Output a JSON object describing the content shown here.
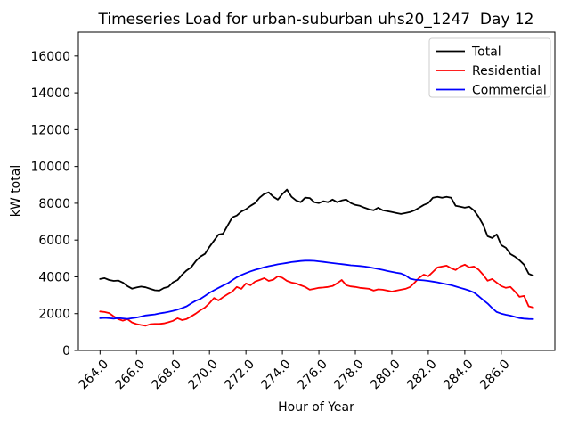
{
  "chart_data": {
    "type": "line",
    "title": "Timeseries Load for urban-suburban uhs20_1247  Day 12",
    "xlabel": "Hour of Year",
    "ylabel": "kW total",
    "x_start": 264.0,
    "x_step": 0.25,
    "xlim": [
      262.8125,
      288.9375
    ],
    "ylim": [
      0,
      17300
    ],
    "x_ticks": [
      264.0,
      266.0,
      268.0,
      270.0,
      272.0,
      274.0,
      276.0,
      278.0,
      280.0,
      282.0,
      284.0,
      286.0
    ],
    "y_ticks": [
      0,
      2000,
      4000,
      6000,
      8000,
      10000,
      12000,
      14000,
      16000
    ],
    "grid": false,
    "legend": {
      "position": "upper right",
      "entries": [
        "Total",
        "Residential",
        "Commercial"
      ]
    },
    "series": [
      {
        "name": "Total",
        "color": "#000000",
        "values": [
          3880,
          3930,
          3830,
          3780,
          3800,
          3690,
          3500,
          3360,
          3420,
          3470,
          3430,
          3350,
          3270,
          3250,
          3390,
          3460,
          3700,
          3830,
          4120,
          4350,
          4520,
          4850,
          5100,
          5250,
          5630,
          5970,
          6300,
          6350,
          6800,
          7230,
          7330,
          7550,
          7670,
          7860,
          8010,
          8300,
          8500,
          8590,
          8350,
          8200,
          8500,
          8740,
          8350,
          8150,
          8060,
          8300,
          8280,
          8060,
          8010,
          8110,
          8060,
          8200,
          8060,
          8150,
          8200,
          8010,
          7910,
          7860,
          7760,
          7670,
          7620,
          7760,
          7620,
          7570,
          7520,
          7470,
          7420,
          7470,
          7520,
          7620,
          7760,
          7910,
          8010,
          8300,
          8350,
          8300,
          8350,
          8300,
          7860,
          7810,
          7760,
          7810,
          7620,
          7280,
          6840,
          6210,
          6110,
          6310,
          5730,
          5580,
          5240,
          5100,
          4900,
          4660,
          4170,
          4060
        ]
      },
      {
        "name": "Residential",
        "color": "#ff0000",
        "values": [
          2120,
          2090,
          2030,
          1850,
          1700,
          1620,
          1700,
          1520,
          1430,
          1380,
          1340,
          1420,
          1440,
          1440,
          1470,
          1530,
          1610,
          1750,
          1650,
          1710,
          1850,
          2000,
          2180,
          2330,
          2570,
          2850,
          2720,
          2900,
          3060,
          3200,
          3450,
          3350,
          3640,
          3540,
          3740,
          3830,
          3930,
          3780,
          3850,
          4030,
          3950,
          3780,
          3690,
          3640,
          3540,
          3450,
          3300,
          3350,
          3400,
          3420,
          3450,
          3500,
          3650,
          3830,
          3540,
          3480,
          3450,
          3400,
          3380,
          3350,
          3250,
          3320,
          3300,
          3250,
          3200,
          3250,
          3300,
          3350,
          3450,
          3690,
          3950,
          4120,
          4030,
          4270,
          4510,
          4560,
          4610,
          4470,
          4370,
          4560,
          4660,
          4510,
          4560,
          4400,
          4120,
          3790,
          3880,
          3690,
          3500,
          3400,
          3450,
          3200,
          2910,
          2960,
          2400,
          2330
        ]
      },
      {
        "name": "Commercial",
        "color": "#0000ff",
        "values": [
          1750,
          1770,
          1750,
          1730,
          1760,
          1740,
          1710,
          1750,
          1790,
          1840,
          1900,
          1930,
          1960,
          2010,
          2050,
          2100,
          2150,
          2220,
          2300,
          2400,
          2560,
          2700,
          2800,
          2960,
          3130,
          3270,
          3400,
          3530,
          3650,
          3820,
          3980,
          4100,
          4200,
          4300,
          4380,
          4450,
          4520,
          4580,
          4630,
          4680,
          4720,
          4760,
          4800,
          4830,
          4860,
          4880,
          4880,
          4870,
          4840,
          4810,
          4780,
          4750,
          4720,
          4690,
          4660,
          4630,
          4610,
          4590,
          4560,
          4520,
          4480,
          4430,
          4380,
          4320,
          4270,
          4220,
          4180,
          4080,
          3900,
          3850,
          3830,
          3810,
          3780,
          3740,
          3700,
          3650,
          3600,
          3550,
          3480,
          3400,
          3330,
          3250,
          3150,
          2960,
          2750,
          2550,
          2300,
          2090,
          2000,
          1940,
          1890,
          1820,
          1760,
          1730,
          1710,
          1700
        ]
      }
    ]
  }
}
